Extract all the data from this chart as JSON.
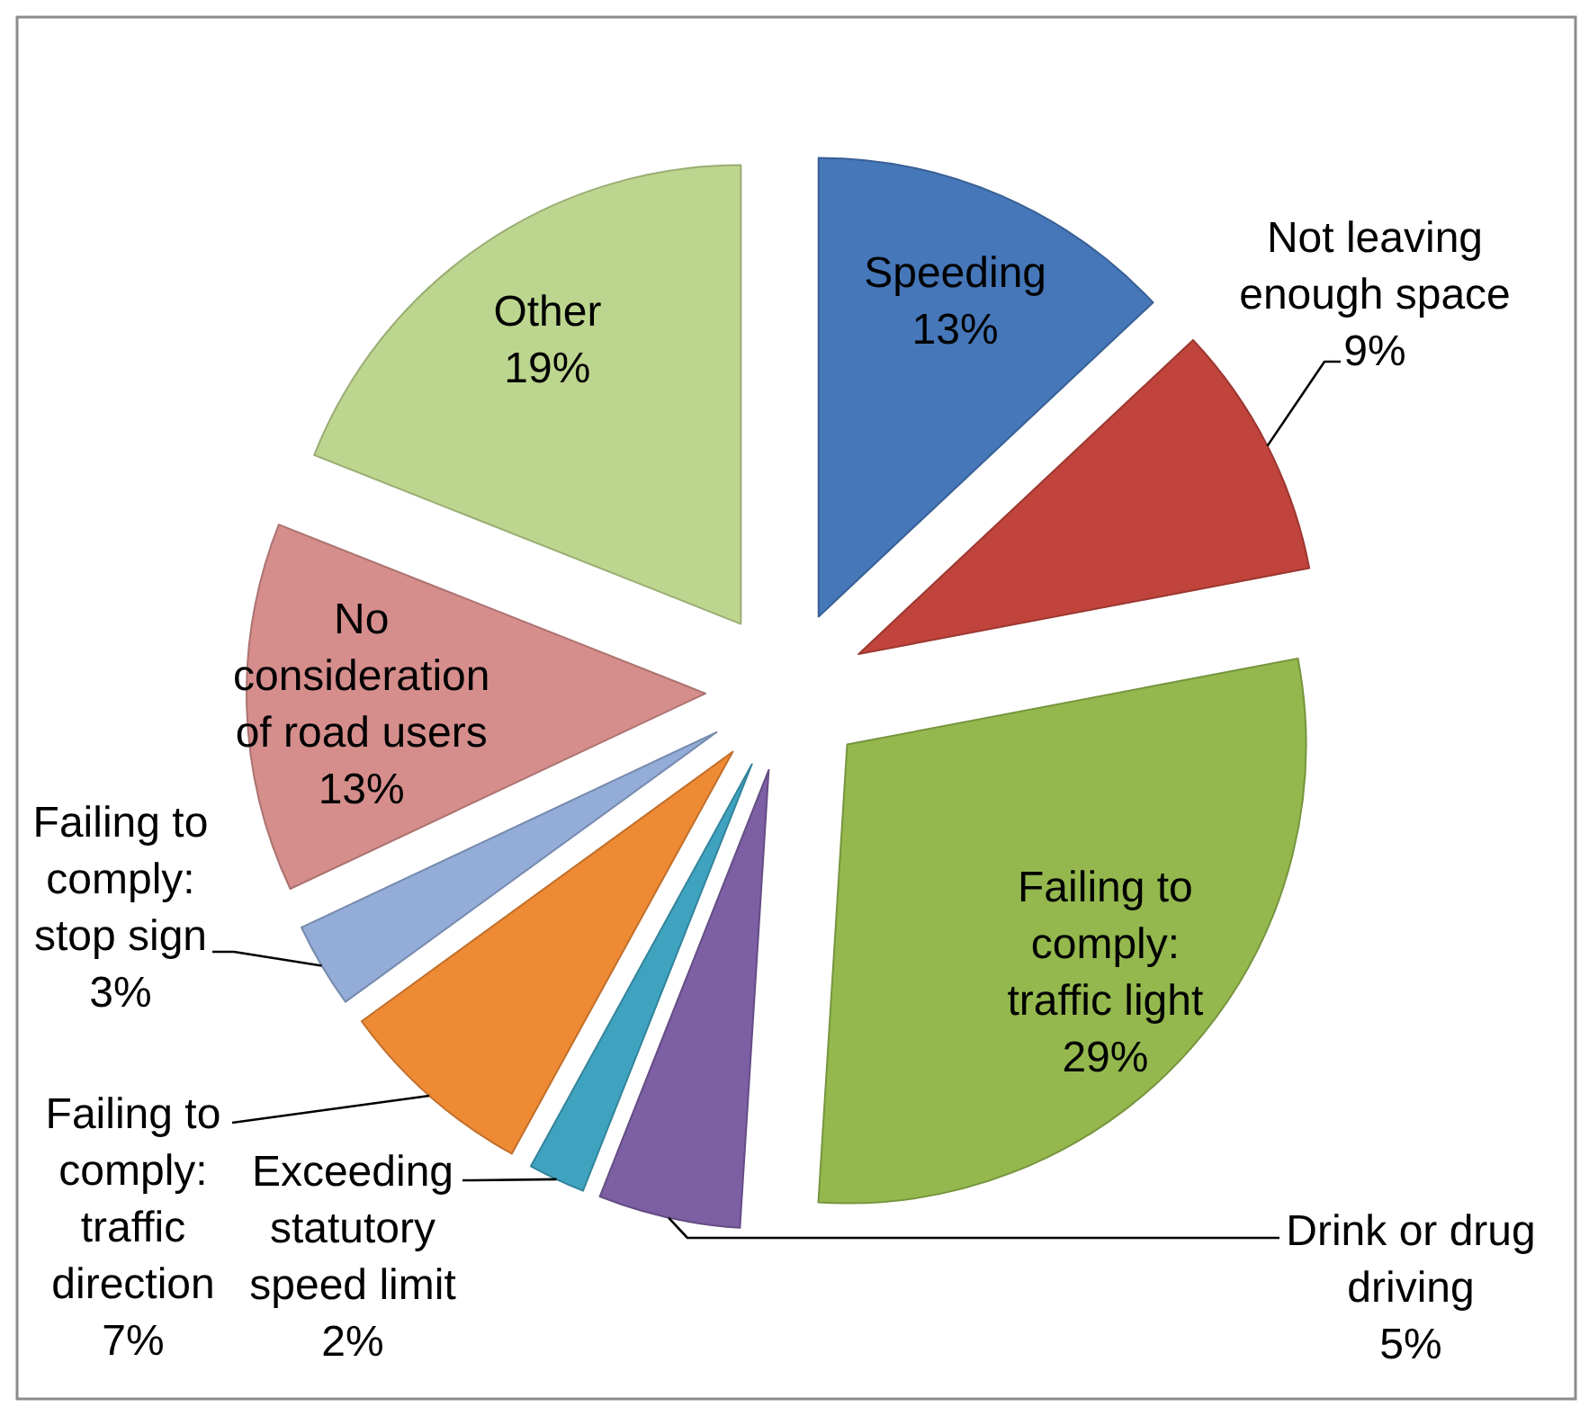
{
  "chart_data": {
    "type": "pie",
    "categories": [
      "Speeding",
      "Not leaving enough space",
      "Failing to comply: traffic light",
      "Drink or drug driving",
      "Exceeding statutory speed limit",
      "Failing to comply: traffic direction",
      "Failing to comply: stop sign",
      "No consideration of road users",
      "Other"
    ],
    "values": [
      13,
      9,
      29,
      5,
      2,
      7,
      3,
      13,
      19
    ],
    "value_labels": [
      "13%",
      "9%",
      "29%",
      "5%",
      "2%",
      "7%",
      "3%",
      "13%",
      "19%"
    ],
    "colors": [
      "#4577b9",
      "#c0443c",
      "#94b84e",
      "#7d5fa4",
      "#3fa3c0",
      "#ee8a34",
      "#93acd8",
      "#d58e8c",
      "#bdd68f"
    ]
  }
}
